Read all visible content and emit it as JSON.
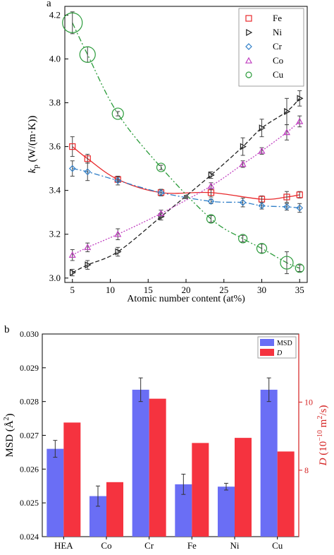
{
  "chart_data": [
    {
      "panel": "a",
      "type": "scatter",
      "xlabel": "Atomic number content (at%)",
      "ylabel_main": "k",
      "ylabel_sub": "p",
      "ylabel_unit": " (W/(m·K))",
      "xlim": [
        4,
        36
      ],
      "ylim": [
        2.98,
        4.24
      ],
      "xticks": [
        5,
        10,
        15,
        20,
        25,
        30,
        35
      ],
      "yticks": [
        3.0,
        3.2,
        3.4,
        3.6,
        3.8,
        4.0,
        4.2
      ],
      "ytick_labels": [
        "3.0",
        "3.2",
        "3.4",
        "3.6",
        "3.8",
        "4.0",
        "4.2"
      ],
      "legend_position": "top-right",
      "series": [
        {
          "name": "Fe",
          "color": "#e8282b",
          "marker": "square",
          "line": "solid",
          "points": [
            {
              "x": 5,
              "y": 3.6,
              "err": 0.045
            },
            {
              "x": 7,
              "y": 3.545,
              "err": 0.02
            },
            {
              "x": 11,
              "y": 3.45,
              "err": 0.01
            },
            {
              "x": 16.7,
              "y": 3.39,
              "err": 0.015
            },
            {
              "x": 23.3,
              "y": 3.39,
              "err": 0.02
            },
            {
              "x": 30,
              "y": 3.36,
              "err": 0.015
            },
            {
              "x": 33.3,
              "y": 3.37,
              "err": 0.025
            },
            {
              "x": 35,
              "y": 3.38,
              "err": 0.015
            }
          ]
        },
        {
          "name": "Ni",
          "color": "#222222",
          "marker": "triangle-right",
          "line": "dashed",
          "points": [
            {
              "x": 5,
              "y": 3.025,
              "err": 0.015
            },
            {
              "x": 7,
              "y": 3.06,
              "err": 0.02
            },
            {
              "x": 11,
              "y": 3.12,
              "err": 0.02
            },
            {
              "x": 16.7,
              "y": 3.28,
              "err": 0.015
            },
            {
              "x": 23.3,
              "y": 3.47,
              "err": 0.015
            },
            {
              "x": 27.5,
              "y": 3.6,
              "err": 0.04
            },
            {
              "x": 30,
              "y": 3.685,
              "err": 0.04
            },
            {
              "x": 33.3,
              "y": 3.76,
              "err": 0.06
            },
            {
              "x": 35,
              "y": 3.82,
              "err": 0.035
            }
          ]
        },
        {
          "name": "Cr",
          "color": "#2f7ec8",
          "marker": "diamond",
          "line": "dashdot",
          "points": [
            {
              "x": 5,
              "y": 3.5,
              "err": 0.035
            },
            {
              "x": 7,
              "y": 3.485,
              "err": 0.04
            },
            {
              "x": 11,
              "y": 3.445,
              "err": 0.02
            },
            {
              "x": 16.7,
              "y": 3.39,
              "err": 0.015
            },
            {
              "x": 23.3,
              "y": 3.35,
              "err": 0.01
            },
            {
              "x": 27.5,
              "y": 3.345,
              "err": 0.02
            },
            {
              "x": 30,
              "y": 3.33,
              "err": 0.015
            },
            {
              "x": 33.3,
              "y": 3.325,
              "err": 0.015
            },
            {
              "x": 35,
              "y": 3.32,
              "err": 0.02
            }
          ]
        },
        {
          "name": "Co",
          "color": "#c040c0",
          "marker": "triangle-up",
          "line": "dotted",
          "points": [
            {
              "x": 5,
              "y": 3.105,
              "err": 0.025
            },
            {
              "x": 7,
              "y": 3.14,
              "err": 0.02
            },
            {
              "x": 11,
              "y": 3.2,
              "err": 0.025
            },
            {
              "x": 16.7,
              "y": 3.295,
              "err": 0.015
            },
            {
              "x": 23.3,
              "y": 3.42,
              "err": 0.015
            },
            {
              "x": 27.5,
              "y": 3.52,
              "err": 0.015
            },
            {
              "x": 30,
              "y": 3.58,
              "err": 0.015
            },
            {
              "x": 33.3,
              "y": 3.665,
              "err": 0.035
            },
            {
              "x": 35,
              "y": 3.715,
              "err": 0.025
            }
          ]
        },
        {
          "name": "Cu",
          "color": "#2a9b3a",
          "marker": "circle",
          "line": "dashdotdot",
          "points": [
            {
              "x": 5,
              "y": 4.165,
              "err": 0.05,
              "size": 14
            },
            {
              "x": 7,
              "y": 4.02,
              "err": 0.035,
              "size": 11
            },
            {
              "x": 11,
              "y": 3.75,
              "err": 0.01,
              "size": 8
            },
            {
              "x": 16.7,
              "y": 3.505,
              "err": 0.01,
              "size": 6
            },
            {
              "x": 23.3,
              "y": 3.27,
              "err": 0.015,
              "size": 6
            },
            {
              "x": 27.5,
              "y": 3.18,
              "err": 0.015,
              "size": 6
            },
            {
              "x": 30,
              "y": 3.135,
              "err": 0.02,
              "size": 7
            },
            {
              "x": 33.3,
              "y": 3.07,
              "err": 0.05,
              "size": 9
            },
            {
              "x": 35,
              "y": 3.045,
              "err": 0.015,
              "size": 6
            }
          ]
        }
      ],
      "intersection": {
        "x": 20,
        "y": 3.37
      }
    },
    {
      "panel": "b",
      "type": "bar",
      "categories": [
        "HEA",
        "Co",
        "Cr",
        "Fe",
        "Ni",
        "Cu"
      ],
      "ylabel_left": "MSD (Å",
      "ylabel_left_sup": "2",
      "ylabel_left_tail": ")",
      "ylabel_right_main": "D",
      "ylabel_right_unit": " (10",
      "ylabel_right_exp": "−10",
      "ylabel_right_mid": " m",
      "ylabel_right_sup": "2",
      "ylabel_right_tail": "/s)",
      "ylim_left": [
        0.024,
        0.03
      ],
      "yticks_left": [
        0.024,
        0.025,
        0.026,
        0.027,
        0.028,
        0.029,
        0.03
      ],
      "ytick_left_labels": [
        "0.024",
        "0.025",
        "0.026",
        "0.027",
        "0.028",
        "0.029",
        "0.030"
      ],
      "ylim_right": [
        6.05,
        12.0
      ],
      "yticks_right": [
        8,
        10
      ],
      "right_axis_color": "#d42020",
      "legend_position": "top-right",
      "series": [
        {
          "name": "MSD",
          "axis": "left",
          "color": "#6a6ef5",
          "values": [
            0.0266,
            0.0252,
            0.02835,
            0.02555,
            0.02548,
            0.02835
          ],
          "errors": [
            0.00025,
            0.0003,
            0.00035,
            0.0003,
            0.0001,
            0.00035
          ]
        },
        {
          "name": "D",
          "axis": "right",
          "color": "#f5333f",
          "values": [
            9.4,
            7.65,
            10.1,
            8.8,
            8.95,
            8.55
          ]
        }
      ]
    }
  ]
}
